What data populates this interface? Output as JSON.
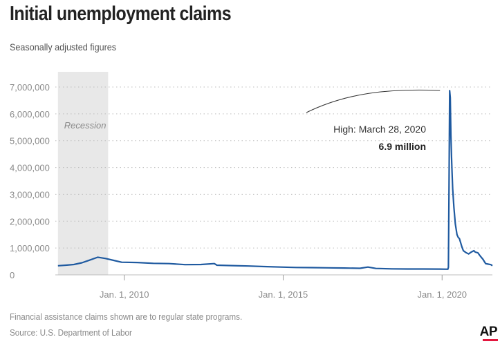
{
  "header": {
    "title": "Initial unemployment claims",
    "subtitle": "Seasonally adjusted figures"
  },
  "chart_data": {
    "type": "line",
    "title": "Initial unemployment claims",
    "subtitle": "Seasonally adjusted figures",
    "xlabel": "",
    "ylabel": "",
    "x_ticks": [
      "Jan. 1, 2010",
      "Jan. 1, 2015",
      "Jan. 1, 2020"
    ],
    "y_ticks": [
      "0",
      "1,000,000",
      "2,000,000",
      "3,000,000",
      "4,000,000",
      "5,000,000",
      "6,000,000",
      "7,000,000"
    ],
    "y_range": [
      0,
      7000000
    ],
    "x_range": [
      "2007-11-01",
      "2021-08-01"
    ],
    "grid": "horizontal dotted",
    "line_color": "#1f5aa0",
    "recession": {
      "label": "Recession",
      "start": "2007-12-01",
      "end": "2009-06-30",
      "color": "#e8e8e8"
    },
    "annotation": {
      "line1": "High: March 28, 2020",
      "line2": "6.9 million"
    },
    "series": [
      {
        "points": [
          [
            "2007-12-01",
            340000
          ],
          [
            "2008-03-01",
            360000
          ],
          [
            "2008-06-01",
            385000
          ],
          [
            "2008-09-01",
            450000
          ],
          [
            "2008-12-01",
            550000
          ],
          [
            "2009-03-01",
            655000
          ],
          [
            "2009-04-01",
            640000
          ],
          [
            "2009-06-01",
            610000
          ],
          [
            "2009-09-01",
            540000
          ],
          [
            "2009-12-01",
            470000
          ],
          [
            "2010-06-01",
            460000
          ],
          [
            "2010-12-01",
            430000
          ],
          [
            "2011-06-01",
            420000
          ],
          [
            "2011-12-01",
            380000
          ],
          [
            "2012-06-01",
            385000
          ],
          [
            "2012-11-01",
            420000
          ],
          [
            "2012-12-01",
            360000
          ],
          [
            "2013-06-01",
            345000
          ],
          [
            "2013-12-01",
            330000
          ],
          [
            "2014-06-01",
            310000
          ],
          [
            "2014-12-01",
            290000
          ],
          [
            "2015-06-01",
            275000
          ],
          [
            "2015-12-01",
            270000
          ],
          [
            "2016-06-01",
            262000
          ],
          [
            "2016-12-01",
            255000
          ],
          [
            "2017-06-01",
            245000
          ],
          [
            "2017-09-01",
            290000
          ],
          [
            "2017-12-01",
            240000
          ],
          [
            "2018-06-01",
            225000
          ],
          [
            "2018-12-01",
            220000
          ],
          [
            "2019-06-01",
            218000
          ],
          [
            "2019-12-01",
            215000
          ],
          [
            "2020-03-07",
            211000
          ],
          [
            "2020-03-14",
            282000
          ],
          [
            "2020-03-21",
            3300000
          ],
          [
            "2020-03-28",
            6867000
          ],
          [
            "2020-04-04",
            6600000
          ],
          [
            "2020-04-11",
            5200000
          ],
          [
            "2020-04-18",
            4400000
          ],
          [
            "2020-04-25",
            3800000
          ],
          [
            "2020-05-02",
            3200000
          ],
          [
            "2020-05-16",
            2500000
          ],
          [
            "2020-06-01",
            1900000
          ],
          [
            "2020-06-20",
            1500000
          ],
          [
            "2020-07-04",
            1400000
          ],
          [
            "2020-07-18",
            1350000
          ],
          [
            "2020-08-01",
            1200000
          ],
          [
            "2020-08-15",
            1050000
          ],
          [
            "2020-09-01",
            900000
          ],
          [
            "2020-10-01",
            830000
          ],
          [
            "2020-11-01",
            780000
          ],
          [
            "2020-12-01",
            850000
          ],
          [
            "2021-01-01",
            900000
          ],
          [
            "2021-01-16",
            850000
          ],
          [
            "2021-02-15",
            820000
          ],
          [
            "2021-03-15",
            700000
          ],
          [
            "2021-04-15",
            580000
          ],
          [
            "2021-05-15",
            420000
          ],
          [
            "2021-06-15",
            400000
          ],
          [
            "2021-07-15",
            380000
          ],
          [
            "2021-08-01",
            340000
          ]
        ]
      }
    ]
  },
  "footer": {
    "note": "Financial assistance claims shown are to regular state programs.",
    "source": "Source: U.S. Department of Labor",
    "logo": "AP"
  }
}
